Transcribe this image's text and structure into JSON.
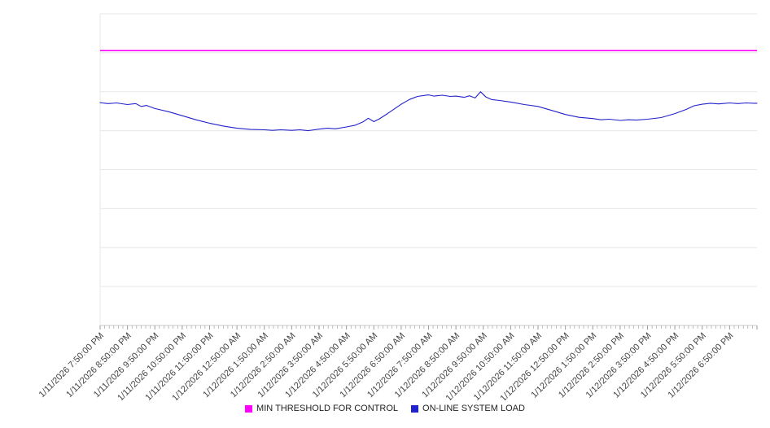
{
  "page": {
    "background": "#ffffff",
    "grid_color": "#e7e7e7",
    "axis_color": "#c8c8c8",
    "tick_color": "#999999",
    "label_color": "#444444"
  },
  "chart_data": {
    "type": "line",
    "title": "",
    "xlabel": "",
    "ylabel": "",
    "xlim": [
      0,
      24
    ],
    "ylim": [
      0,
      100
    ],
    "y_grid_divisions": 8,
    "grid": "horizontal",
    "legend_position": "bottom",
    "x_tick_labels": [
      "1/11/2026 7:50:00 PM",
      "1/11/2026 8:50:00 PM",
      "1/11/2026 9:50:00 PM",
      "1/11/2026 10:50:00 PM",
      "1/11/2026 11:50:00 PM",
      "1/12/2026 12:50:00 AM",
      "1/12/2026 1:50:00 AM",
      "1/12/2026 2:50:00 AM",
      "1/12/2026 3:50:00 AM",
      "1/12/2026 4:50:00 AM",
      "1/12/2026 5:50:00 AM",
      "1/12/2026 6:50:00 AM",
      "1/12/2026 7:50:00 AM",
      "1/12/2026 8:50:00 AM",
      "1/12/2026 9:50:00 AM",
      "1/12/2026 10:50:00 AM",
      "1/12/2026 11:50:00 AM",
      "1/12/2026 12:50:00 PM",
      "1/12/2026 1:50:00 PM",
      "1/12/2026 2:50:00 PM",
      "1/12/2026 3:50:00 PM",
      "1/12/2026 4:50:00 PM",
      "1/12/2026 5:50:00 PM",
      "1/12/2026 6:50:00 PM"
    ],
    "minor_ticks_per_hour": 6,
    "series": [
      {
        "name": "MIN THRESHOLD FOR CONTROL",
        "type": "threshold",
        "color": "#ff00ff",
        "value": 88.2
      },
      {
        "name": "ON-LINE SYSTEM LOAD",
        "type": "line",
        "color": "#2222cc",
        "x": [
          0,
          0.3,
          0.6,
          1,
          1.3,
          1.5,
          1.7,
          2,
          2.5,
          3,
          3.5,
          4,
          4.5,
          5,
          5.5,
          6,
          6.3,
          6.6,
          7,
          7.3,
          7.6,
          8,
          8.3,
          8.6,
          9,
          9.3,
          9.6,
          9.8,
          10,
          10.2,
          10.5,
          10.8,
          11,
          11.3,
          11.6,
          12,
          12.2,
          12.5,
          12.8,
          13,
          13.3,
          13.5,
          13.7,
          13.9,
          14.1,
          14.3,
          14.6,
          15,
          15.5,
          16,
          16.5,
          17,
          17.5,
          18,
          18.3,
          18.6,
          19,
          19.3,
          19.6,
          20,
          20.5,
          21,
          21.4,
          21.7,
          22,
          22.3,
          22.6,
          23,
          23.3,
          23.6,
          23.9,
          24
        ],
        "values": [
          71.5,
          71.2,
          71.4,
          70.9,
          71.2,
          70.3,
          70.6,
          69.6,
          68.6,
          67.3,
          66.0,
          64.9,
          64.0,
          63.3,
          62.9,
          62.8,
          62.6,
          62.8,
          62.6,
          62.8,
          62.5,
          63.0,
          63.3,
          63.1,
          63.7,
          64.2,
          65.3,
          66.5,
          65.4,
          66.3,
          68.0,
          69.8,
          71.0,
          72.5,
          73.5,
          74.0,
          73.6,
          73.9,
          73.5,
          73.6,
          73.2,
          73.7,
          73.0,
          75.0,
          73.3,
          72.5,
          72.2,
          71.7,
          70.9,
          70.3,
          69.0,
          67.7,
          66.8,
          66.4,
          66.0,
          66.2,
          65.8,
          66.0,
          65.9,
          66.2,
          66.7,
          68.0,
          69.3,
          70.5,
          71.0,
          71.3,
          71.1,
          71.4,
          71.2,
          71.4,
          71.3,
          71.3
        ]
      }
    ]
  },
  "legend": {
    "items": [
      {
        "label": "MIN THRESHOLD FOR CONTROL",
        "color": "#ff00ff"
      },
      {
        "label": "ON-LINE SYSTEM LOAD",
        "color": "#2222cc"
      }
    ]
  }
}
